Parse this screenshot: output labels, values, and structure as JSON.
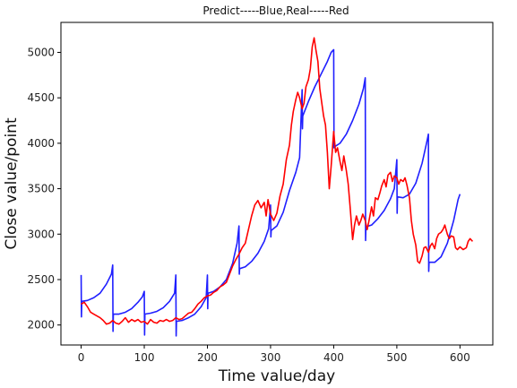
{
  "chart_data": {
    "type": "line",
    "title": "Predict-----Blue,Real-----Red",
    "xlabel": "Time value/day",
    "ylabel": "Close value/point",
    "xlim": [
      -32,
      652
    ],
    "ylim": [
      1780,
      5330
    ],
    "x_ticks": [
      0,
      100,
      200,
      300,
      400,
      500,
      600
    ],
    "y_ticks": [
      2000,
      2500,
      3000,
      3500,
      4000,
      4500,
      5000
    ],
    "grid": false,
    "legend": "none",
    "series": [
      {
        "color": "#1f1fff",
        "points": [
          [
            0,
            2550
          ],
          [
            0.5,
            2090
          ],
          [
            1,
            2260
          ],
          [
            10,
            2270
          ],
          [
            20,
            2300
          ],
          [
            30,
            2350
          ],
          [
            40,
            2450
          ],
          [
            48,
            2560
          ],
          [
            50,
            2660
          ],
          [
            50.5,
            1930
          ],
          [
            51,
            2120
          ],
          [
            60,
            2120
          ],
          [
            70,
            2140
          ],
          [
            80,
            2180
          ],
          [
            90,
            2250
          ],
          [
            97,
            2310
          ],
          [
            100,
            2370
          ],
          [
            100.5,
            1890
          ],
          [
            101,
            2120
          ],
          [
            110,
            2130
          ],
          [
            120,
            2150
          ],
          [
            130,
            2190
          ],
          [
            140,
            2260
          ],
          [
            148,
            2350
          ],
          [
            150,
            2550
          ],
          [
            150.5,
            1880
          ],
          [
            151,
            2040
          ],
          [
            160,
            2050
          ],
          [
            170,
            2080
          ],
          [
            180,
            2120
          ],
          [
            190,
            2200
          ],
          [
            198,
            2300
          ],
          [
            200,
            2550
          ],
          [
            200.5,
            2180
          ],
          [
            201,
            2350
          ],
          [
            210,
            2370
          ],
          [
            220,
            2420
          ],
          [
            230,
            2500
          ],
          [
            240,
            2680
          ],
          [
            247,
            2900
          ],
          [
            250,
            3090
          ],
          [
            250.5,
            2560
          ],
          [
            251,
            2620
          ],
          [
            260,
            2640
          ],
          [
            270,
            2700
          ],
          [
            280,
            2790
          ],
          [
            290,
            2920
          ],
          [
            297,
            3060
          ],
          [
            300,
            3320
          ],
          [
            300.5,
            2970
          ],
          [
            301,
            3040
          ],
          [
            310,
            3090
          ],
          [
            320,
            3240
          ],
          [
            330,
            3480
          ],
          [
            340,
            3680
          ],
          [
            346,
            3840
          ],
          [
            350,
            4590
          ],
          [
            350.5,
            4160
          ],
          [
            351,
            4300
          ],
          [
            360,
            4460
          ],
          [
            370,
            4620
          ],
          [
            380,
            4760
          ],
          [
            390,
            4900
          ],
          [
            396,
            5000
          ],
          [
            400,
            5030
          ],
          [
            400.5,
            3950
          ],
          [
            401,
            3960
          ],
          [
            410,
            4000
          ],
          [
            420,
            4100
          ],
          [
            430,
            4250
          ],
          [
            440,
            4430
          ],
          [
            447,
            4600
          ],
          [
            450,
            4720
          ],
          [
            450.5,
            2930
          ],
          [
            451,
            3080
          ],
          [
            460,
            3100
          ],
          [
            470,
            3170
          ],
          [
            480,
            3260
          ],
          [
            490,
            3390
          ],
          [
            496,
            3500
          ],
          [
            500,
            3820
          ],
          [
            500.5,
            3230
          ],
          [
            501,
            3410
          ],
          [
            510,
            3400
          ],
          [
            520,
            3440
          ],
          [
            530,
            3560
          ],
          [
            540,
            3780
          ],
          [
            547,
            4000
          ],
          [
            550,
            4100
          ],
          [
            550.5,
            2590
          ],
          [
            551,
            2690
          ],
          [
            560,
            2690
          ],
          [
            570,
            2750
          ],
          [
            580,
            2900
          ],
          [
            590,
            3150
          ],
          [
            597,
            3380
          ],
          [
            600,
            3440
          ]
        ]
      },
      {
        "color": "#ff0000",
        "points": [
          [
            0,
            2230
          ],
          [
            5,
            2250
          ],
          [
            10,
            2200
          ],
          [
            15,
            2140
          ],
          [
            20,
            2120
          ],
          [
            25,
            2100
          ],
          [
            30,
            2080
          ],
          [
            35,
            2050
          ],
          [
            40,
            2010
          ],
          [
            45,
            2020
          ],
          [
            50,
            2050
          ],
          [
            55,
            2020
          ],
          [
            60,
            2010
          ],
          [
            65,
            2040
          ],
          [
            70,
            2080
          ],
          [
            75,
            2030
          ],
          [
            80,
            2060
          ],
          [
            85,
            2040
          ],
          [
            90,
            2060
          ],
          [
            95,
            2030
          ],
          [
            100,
            2040
          ],
          [
            105,
            2010
          ],
          [
            110,
            2060
          ],
          [
            115,
            2030
          ],
          [
            120,
            2020
          ],
          [
            125,
            2050
          ],
          [
            130,
            2040
          ],
          [
            135,
            2060
          ],
          [
            140,
            2040
          ],
          [
            145,
            2050
          ],
          [
            150,
            2080
          ],
          [
            155,
            2060
          ],
          [
            160,
            2070
          ],
          [
            165,
            2100
          ],
          [
            170,
            2130
          ],
          [
            175,
            2140
          ],
          [
            180,
            2180
          ],
          [
            185,
            2230
          ],
          [
            190,
            2260
          ],
          [
            195,
            2300
          ],
          [
            200,
            2320
          ],
          [
            205,
            2330
          ],
          [
            210,
            2360
          ],
          [
            215,
            2380
          ],
          [
            220,
            2420
          ],
          [
            225,
            2440
          ],
          [
            230,
            2470
          ],
          [
            235,
            2560
          ],
          [
            240,
            2650
          ],
          [
            245,
            2720
          ],
          [
            250,
            2780
          ],
          [
            255,
            2850
          ],
          [
            260,
            2900
          ],
          [
            265,
            3050
          ],
          [
            270,
            3200
          ],
          [
            275,
            3320
          ],
          [
            280,
            3370
          ],
          [
            285,
            3290
          ],
          [
            290,
            3350
          ],
          [
            293,
            3200
          ],
          [
            296,
            3380
          ],
          [
            300,
            3220
          ],
          [
            305,
            3150
          ],
          [
            310,
            3230
          ],
          [
            315,
            3420
          ],
          [
            320,
            3550
          ],
          [
            325,
            3820
          ],
          [
            330,
            3980
          ],
          [
            333,
            4200
          ],
          [
            336,
            4350
          ],
          [
            340,
            4480
          ],
          [
            343,
            4560
          ],
          [
            346,
            4500
          ],
          [
            350,
            4380
          ],
          [
            353,
            4440
          ],
          [
            356,
            4620
          ],
          [
            360,
            4700
          ],
          [
            363,
            4820
          ],
          [
            366,
            5060
          ],
          [
            369,
            5160
          ],
          [
            372,
            5020
          ],
          [
            375,
            4900
          ],
          [
            378,
            4600
          ],
          [
            381,
            4450
          ],
          [
            384,
            4300
          ],
          [
            387,
            4200
          ],
          [
            390,
            3900
          ],
          [
            393,
            3500
          ],
          [
            396,
            3750
          ],
          [
            400,
            4130
          ],
          [
            403,
            3900
          ],
          [
            406,
            3950
          ],
          [
            410,
            3800
          ],
          [
            413,
            3700
          ],
          [
            416,
            3860
          ],
          [
            420,
            3700
          ],
          [
            423,
            3550
          ],
          [
            426,
            3300
          ],
          [
            430,
            2940
          ],
          [
            433,
            3100
          ],
          [
            436,
            3200
          ],
          [
            440,
            3100
          ],
          [
            443,
            3150
          ],
          [
            446,
            3220
          ],
          [
            450,
            3150
          ],
          [
            453,
            3050
          ],
          [
            456,
            3150
          ],
          [
            460,
            3300
          ],
          [
            463,
            3200
          ],
          [
            466,
            3400
          ],
          [
            470,
            3380
          ],
          [
            473,
            3450
          ],
          [
            476,
            3530
          ],
          [
            480,
            3600
          ],
          [
            483,
            3520
          ],
          [
            486,
            3650
          ],
          [
            490,
            3680
          ],
          [
            493,
            3580
          ],
          [
            496,
            3640
          ],
          [
            500,
            3620
          ],
          [
            503,
            3550
          ],
          [
            506,
            3600
          ],
          [
            510,
            3580
          ],
          [
            513,
            3620
          ],
          [
            516,
            3540
          ],
          [
            520,
            3400
          ],
          [
            523,
            3150
          ],
          [
            526,
            3000
          ],
          [
            530,
            2880
          ],
          [
            533,
            2700
          ],
          [
            536,
            2680
          ],
          [
            540,
            2760
          ],
          [
            543,
            2850
          ],
          [
            546,
            2860
          ],
          [
            550,
            2800
          ],
          [
            553,
            2870
          ],
          [
            556,
            2900
          ],
          [
            560,
            2840
          ],
          [
            563,
            2950
          ],
          [
            566,
            3000
          ],
          [
            570,
            3020
          ],
          [
            573,
            3050
          ],
          [
            576,
            3100
          ],
          [
            580,
            3000
          ],
          [
            583,
            2950
          ],
          [
            586,
            2980
          ],
          [
            590,
            2970
          ],
          [
            593,
            2850
          ],
          [
            596,
            2830
          ],
          [
            600,
            2860
          ],
          [
            605,
            2830
          ],
          [
            610,
            2850
          ],
          [
            613,
            2920
          ],
          [
            616,
            2950
          ],
          [
            620,
            2920
          ]
        ]
      }
    ]
  }
}
